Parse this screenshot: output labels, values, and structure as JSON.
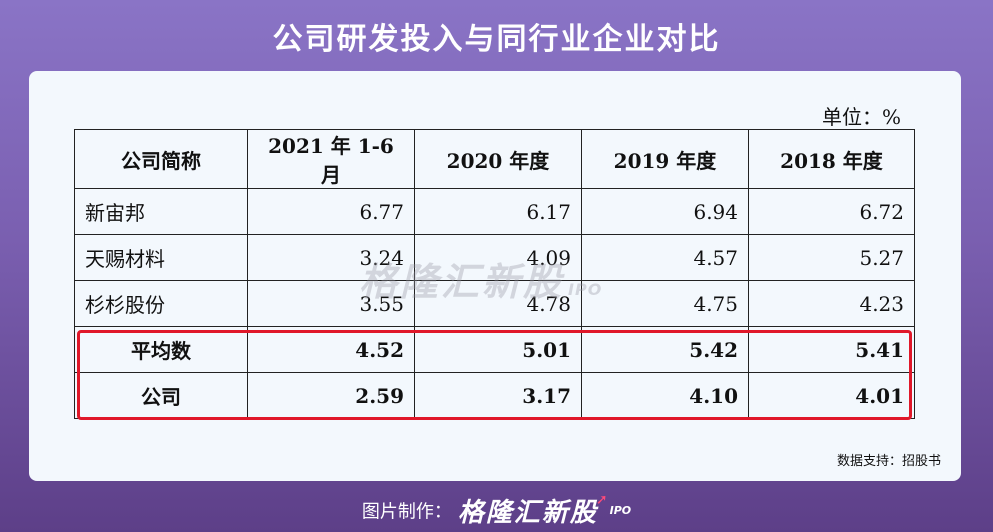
{
  "title": "公司研发投入与同行业企业对比",
  "unit_label": "单位：%",
  "table": {
    "headers": [
      "公司简称",
      "2021 年 1-6 月",
      "2020 年度",
      "2019 年度",
      "2018 年度"
    ],
    "rows": [
      {
        "name": "新宙邦",
        "values": [
          "6.77",
          "6.17",
          "6.94",
          "6.72"
        ]
      },
      {
        "name": "天赐材料",
        "values": [
          "3.24",
          "4.09",
          "4.57",
          "5.27"
        ]
      },
      {
        "name": "杉杉股份",
        "values": [
          "3.55",
          "4.78",
          "4.75",
          "4.23"
        ]
      },
      {
        "name": "平均数",
        "values": [
          "4.52",
          "5.01",
          "5.42",
          "5.41"
        ]
      },
      {
        "name": "公司",
        "values": [
          "2.59",
          "3.17",
          "4.10",
          "4.01"
        ]
      }
    ]
  },
  "watermark": {
    "brand": "格隆汇新股",
    "suffix": "IPO"
  },
  "source": "数据支持：招股书",
  "footer": {
    "made_by": "图片制作：",
    "brand": "格隆汇新股",
    "suffix": "IPO"
  },
  "colors": {
    "highlight": "#e0182a",
    "background_top": "#8a74c6",
    "background_bottom": "#5d3f88"
  }
}
